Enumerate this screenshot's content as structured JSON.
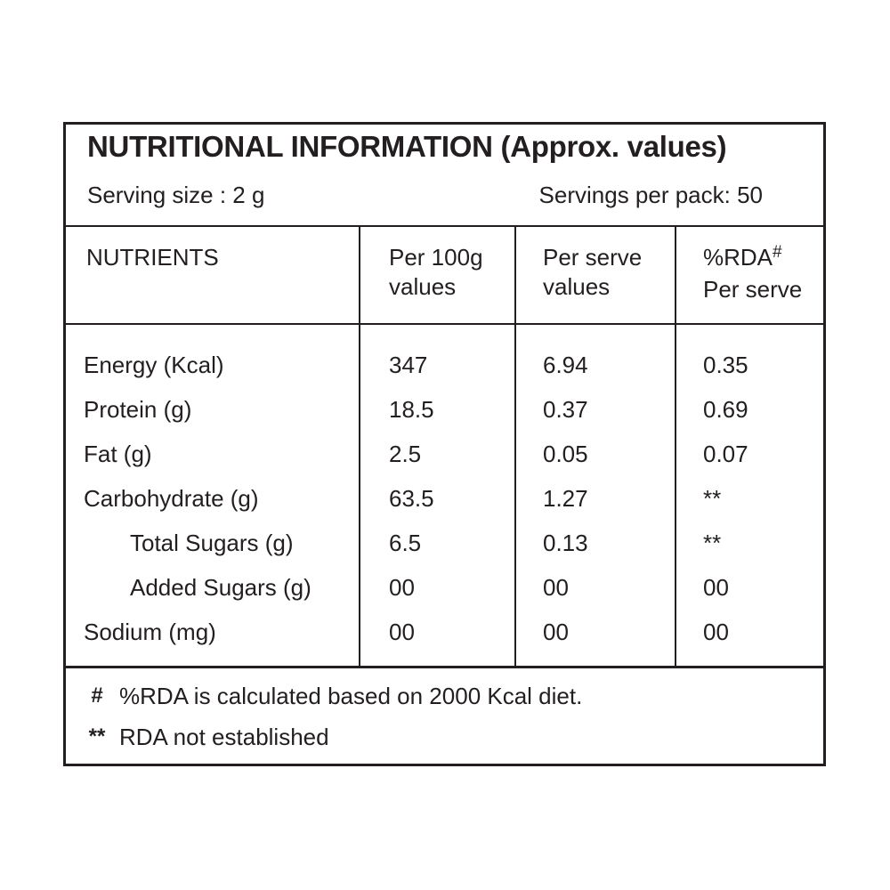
{
  "label": {
    "title": "NUTRITIONAL INFORMATION (Approx. values)",
    "serving_size": "Serving size : 2 g",
    "servings_per_pack": "Servings per pack: 50",
    "columns": {
      "nutrients": "NUTRIENTS",
      "per_100g": "Per 100g\nvalues",
      "per_serve": "Per serve\nvalues",
      "rda_main": "%RDA",
      "rda_superscript": "#",
      "rda_second_line": "Per serve"
    },
    "rows": [
      {
        "name": "Energy (Kcal)",
        "per_100g": "347",
        "per_serve": "6.94",
        "rda_per_serve": "0.35",
        "indent": false
      },
      {
        "name": "Protein (g)",
        "per_100g": "18.5",
        "per_serve": "0.37",
        "rda_per_serve": "0.69",
        "indent": false
      },
      {
        "name": "Fat (g)",
        "per_100g": "2.5",
        "per_serve": "0.05",
        "rda_per_serve": "0.07",
        "indent": false
      },
      {
        "name": "Carbohydrate (g)",
        "per_100g": "63.5",
        "per_serve": "1.27",
        "rda_per_serve": "**",
        "indent": false
      },
      {
        "name": "Total Sugars (g)",
        "per_100g": "6.5",
        "per_serve": "0.13",
        "rda_per_serve": "**",
        "indent": true
      },
      {
        "name": "Added Sugars (g)",
        "per_100g": "00",
        "per_serve": "00",
        "rda_per_serve": "00",
        "indent": true
      },
      {
        "name": "Sodium (mg)",
        "per_100g": "00",
        "per_serve": "00",
        "rda_per_serve": "00",
        "indent": false
      }
    ],
    "footnotes": [
      {
        "symbol": "#",
        "text": "%RDA is calculated based on 2000 Kcal diet."
      },
      {
        "symbol": "**",
        "text": "RDA not established"
      }
    ],
    "colors": {
      "text": "#231f20",
      "line": "#231f20",
      "background": "#ffffff"
    }
  }
}
